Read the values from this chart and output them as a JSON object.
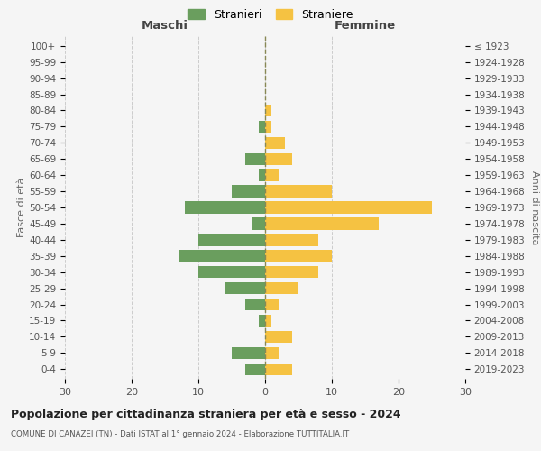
{
  "age_groups": [
    "0-4",
    "5-9",
    "10-14",
    "15-19",
    "20-24",
    "25-29",
    "30-34",
    "35-39",
    "40-44",
    "45-49",
    "50-54",
    "55-59",
    "60-64",
    "65-69",
    "70-74",
    "75-79",
    "80-84",
    "85-89",
    "90-94",
    "95-99",
    "100+"
  ],
  "birth_years": [
    "2019-2023",
    "2014-2018",
    "2009-2013",
    "2004-2008",
    "1999-2003",
    "1994-1998",
    "1989-1993",
    "1984-1988",
    "1979-1983",
    "1974-1978",
    "1969-1973",
    "1964-1968",
    "1959-1963",
    "1954-1958",
    "1949-1953",
    "1944-1948",
    "1939-1943",
    "1934-1938",
    "1929-1933",
    "1924-1928",
    "≤ 1923"
  ],
  "maschi": [
    3,
    5,
    0,
    1,
    3,
    6,
    10,
    13,
    10,
    2,
    12,
    5,
    1,
    3,
    0,
    1,
    0,
    0,
    0,
    0,
    0
  ],
  "femmine": [
    4,
    2,
    4,
    1,
    2,
    5,
    8,
    10,
    8,
    17,
    25,
    10,
    2,
    4,
    3,
    1,
    1,
    0,
    0,
    0,
    0
  ],
  "color_maschi": "#6a9e5e",
  "color_femmine": "#f5c242",
  "title": "Popolazione per cittadinanza straniera per età e sesso - 2024",
  "subtitle": "COMUNE DI CANAZEI (TN) - Dati ISTAT al 1° gennaio 2024 - Elaborazione TUTTITALIA.IT",
  "xlabel_left": "Maschi",
  "xlabel_right": "Femmine",
  "ylabel_left": "Fasce di età",
  "ylabel_right": "Anni di nascita",
  "legend_maschi": "Stranieri",
  "legend_femmine": "Straniere",
  "xlim": 30,
  "background_color": "#f5f5f5",
  "grid_color": "#cccccc"
}
